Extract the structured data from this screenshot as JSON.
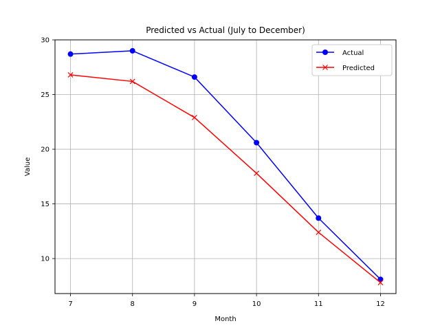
{
  "chart_data": {
    "type": "line",
    "title": "Predicted vs Actual (July to December)",
    "xlabel": "Month",
    "ylabel": "Value",
    "x": [
      7,
      8,
      9,
      10,
      11,
      12
    ],
    "x_ticks": [
      "7",
      "8",
      "9",
      "10",
      "11",
      "12"
    ],
    "y_ticks": [
      "10",
      "15",
      "20",
      "25",
      "30"
    ],
    "ylim": [
      6.8,
      30
    ],
    "grid": true,
    "legend_position": "top-right",
    "series": [
      {
        "name": "Actual",
        "values": [
          28.7,
          29.0,
          26.6,
          20.6,
          13.7,
          8.1
        ],
        "color": "#0000ff",
        "marker": "circle"
      },
      {
        "name": "Predicted",
        "values": [
          26.8,
          26.2,
          22.9,
          17.8,
          12.4,
          7.8
        ],
        "color": "#ff0000",
        "marker": "x"
      }
    ]
  }
}
